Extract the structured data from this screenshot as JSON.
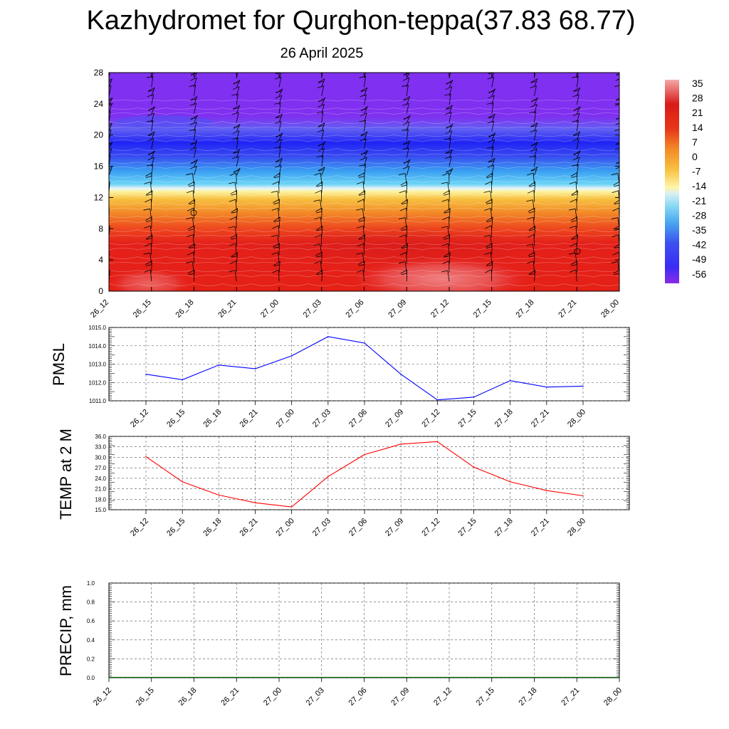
{
  "title": "Kazhydromet for Qurghon-teppa(37.83 68.77)",
  "subtitle": "26 April 2025",
  "chart_data": [
    {
      "type": "heatmap",
      "variable": "temperature profile with wind barbs",
      "x_tick_labels": [
        "26_12",
        "26_15",
        "26_18",
        "26_21",
        "27_00",
        "27_03",
        "27_06",
        "27_09",
        "27_12",
        "27_15",
        "27_18",
        "27_21",
        "28_00"
      ],
      "y_tick_labels": [
        "0",
        "4",
        "8",
        "12",
        "16",
        "20",
        "24",
        "28"
      ],
      "ylim": [
        0,
        28
      ],
      "colorbar_labels": [
        "35",
        "28",
        "21",
        "14",
        "7",
        "0",
        "-7",
        "-14",
        "-21",
        "-28",
        "-35",
        "-42",
        "-49",
        "-56"
      ],
      "colorbar_range": [
        -60,
        38
      ],
      "colors": {
        "hot": "#ee6a6a",
        "red": "#e21b14",
        "orange": "#f08a24",
        "yellow": "#fbf59a",
        "cyan": "#5ad2f4",
        "blue": "#2b2cf6",
        "violet": "#7f2ef0"
      }
    },
    {
      "type": "line",
      "ylabel": "PMSL",
      "x": [
        "26_12",
        "26_15",
        "26_18",
        "26_21",
        "27_00",
        "27_03",
        "27_06",
        "27_09",
        "27_12",
        "27_15",
        "27_18",
        "27_21",
        "28_00"
      ],
      "y_tick_labels": [
        "1011.0",
        "1012.0",
        "1013.0",
        "1014.0",
        "1015.0"
      ],
      "ylim": [
        1011.0,
        1015.0
      ],
      "values": [
        1012.45,
        1012.15,
        1012.95,
        1012.75,
        1013.45,
        1014.5,
        1014.15,
        1012.45,
        1011.05,
        1011.2,
        1012.1,
        1011.75,
        1011.8
      ],
      "color": "#0000ff"
    },
    {
      "type": "line",
      "ylabel": "TEMP at 2 M",
      "x": [
        "26_12",
        "26_15",
        "26_18",
        "26_21",
        "27_00",
        "27_03",
        "27_06",
        "27_09",
        "27_12",
        "27_15",
        "27_18",
        "27_21",
        "28_00"
      ],
      "y_tick_labels": [
        "15.0",
        "18.0",
        "21.0",
        "24.0",
        "27.0",
        "30.0",
        "33.0",
        "36.0"
      ],
      "ylim": [
        15.0,
        36.0
      ],
      "values": [
        30.2,
        23.0,
        19.2,
        17.0,
        15.8,
        24.5,
        30.8,
        33.8,
        34.5,
        27.2,
        23.0,
        20.5,
        19.0
      ],
      "color": "#ff0000"
    },
    {
      "type": "bar",
      "ylabel": "PRECIP, mm",
      "x_tick_labels": [
        "26_12",
        "26_15",
        "26_18",
        "26_21",
        "27_00",
        "27_03",
        "27_06",
        "27_09",
        "27_12",
        "27_15",
        "27_18",
        "27_21",
        "28_00"
      ],
      "y_tick_labels": [
        "0.0",
        "0.2",
        "0.4",
        "0.6",
        "0.8",
        "1.0"
      ],
      "ylim": [
        0.0,
        1.0
      ],
      "values": [
        0,
        0,
        0,
        0,
        0,
        0,
        0,
        0,
        0,
        0,
        0,
        0,
        0
      ],
      "color": "#006400"
    }
  ]
}
